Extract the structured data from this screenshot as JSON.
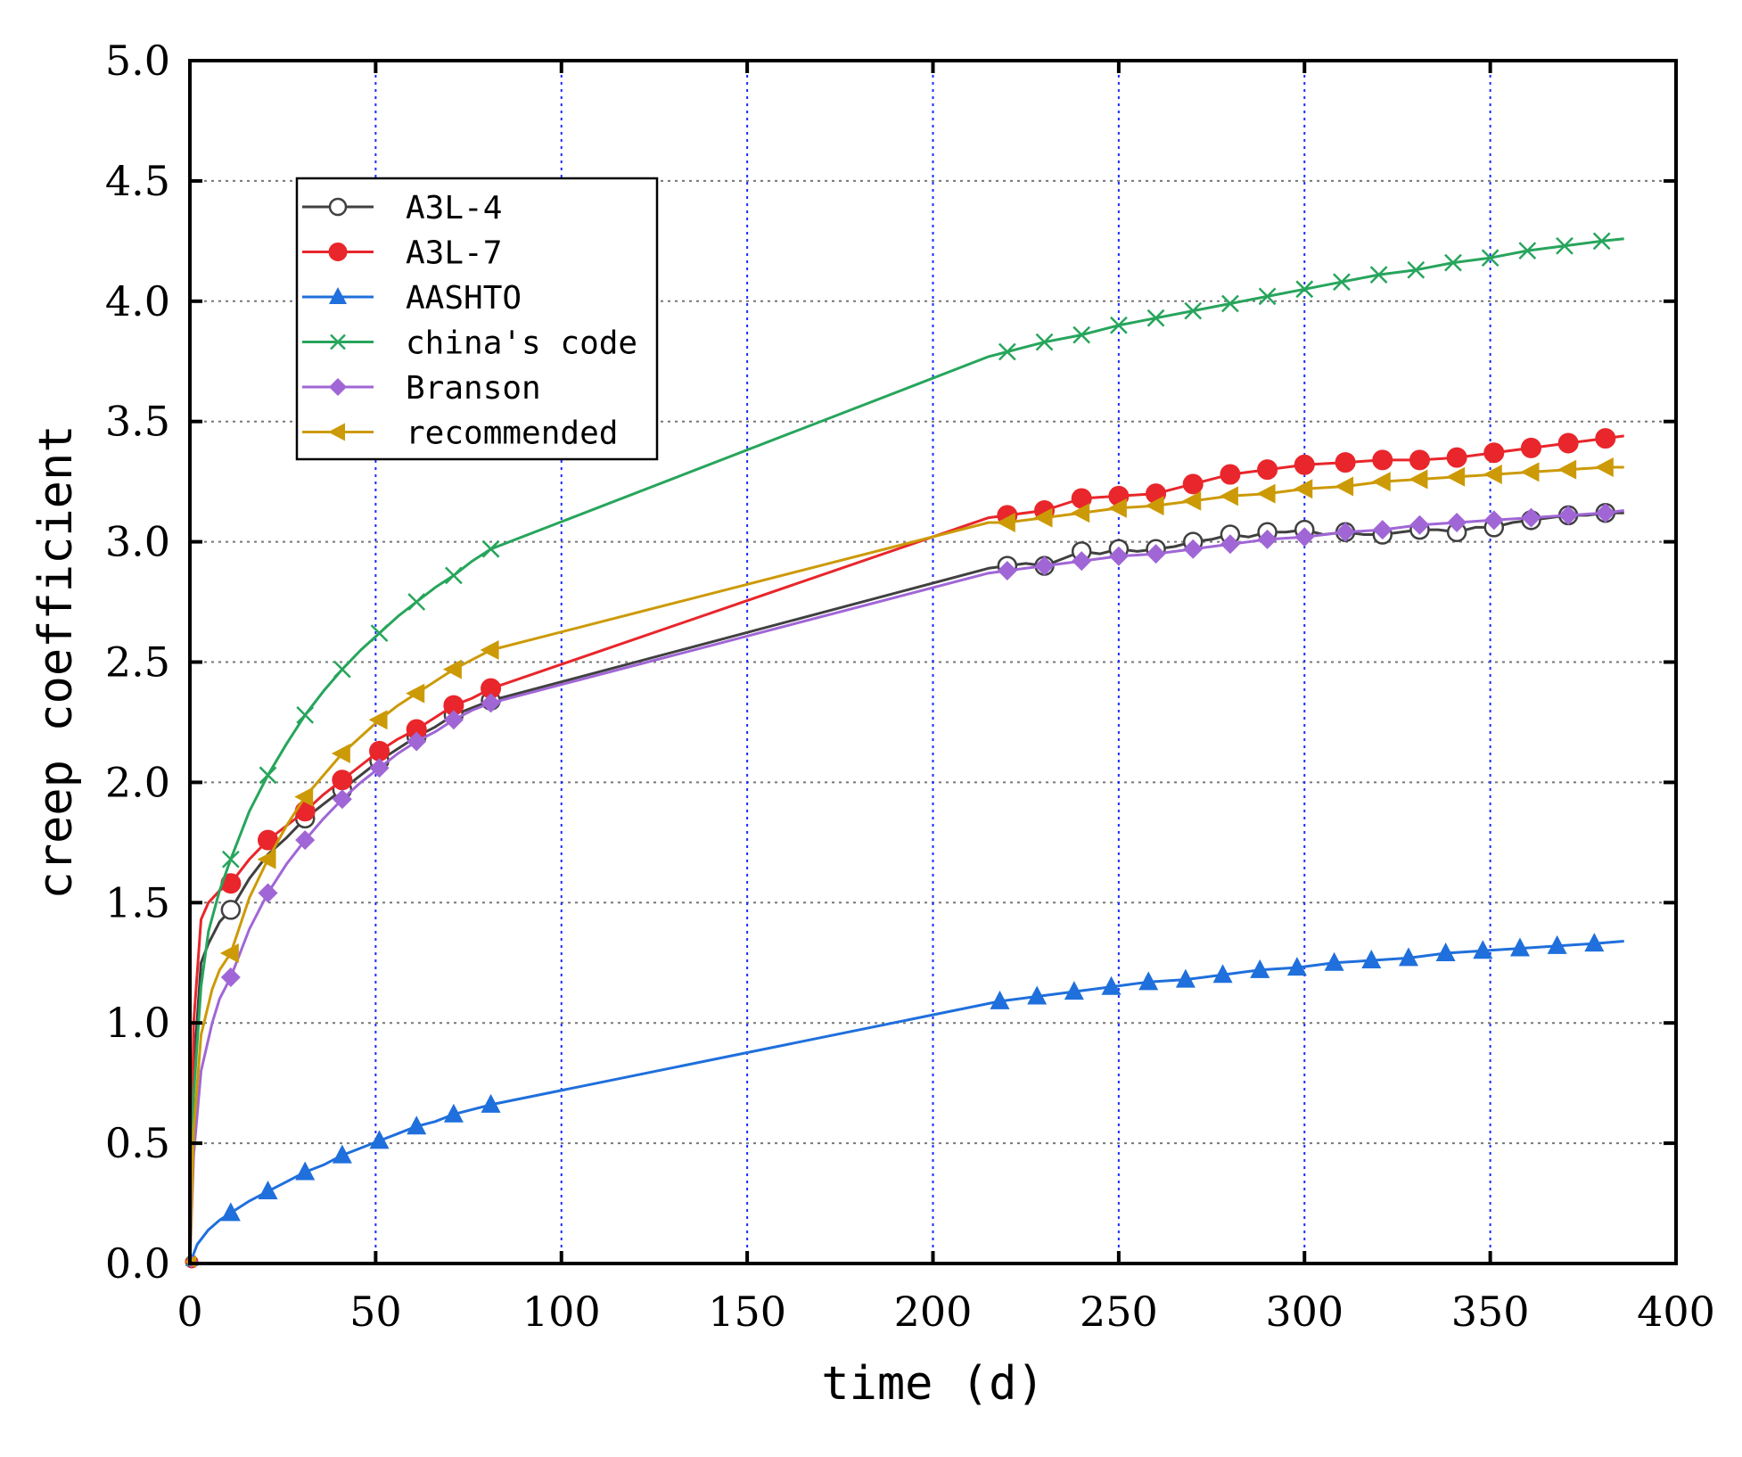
{
  "chart_data": {
    "type": "line",
    "title": "",
    "xlabel": "time (d)",
    "ylabel": "creep coefficient",
    "xlim": [
      0,
      400
    ],
    "ylim": [
      0,
      5
    ],
    "xticks": [
      0,
      50,
      100,
      150,
      200,
      250,
      300,
      350,
      400
    ],
    "yticks": [
      0.0,
      0.5,
      1.0,
      1.5,
      2.0,
      2.5,
      3.0,
      3.5,
      4.0,
      4.5,
      5.0
    ],
    "xtick_labels": [
      "0",
      "50",
      "100",
      "150",
      "200",
      "250",
      "300",
      "350",
      "400"
    ],
    "ytick_labels": [
      "0.0",
      "0.5",
      "1.0",
      "1.5",
      "2.0",
      "2.5",
      "3.0",
      "3.5",
      "4.0",
      "4.5",
      "5.0"
    ],
    "grid": {
      "x": "blue dotted",
      "y": "gray dotted"
    },
    "legend_position": "upper-left",
    "series": [
      {
        "name": "A3L-4",
        "color": "#404040",
        "marker": "circle-open",
        "points": [
          [
            0,
            0
          ],
          [
            1,
            0.8
          ],
          [
            3,
            1.25
          ],
          [
            5,
            1.33
          ],
          [
            8,
            1.42
          ],
          [
            11,
            1.47
          ],
          [
            16,
            1.6
          ],
          [
            21,
            1.7
          ],
          [
            26,
            1.77
          ],
          [
            31,
            1.85
          ],
          [
            36,
            1.91
          ],
          [
            41,
            1.97
          ],
          [
            46,
            2.03
          ],
          [
            51,
            2.09
          ],
          [
            56,
            2.14
          ],
          [
            61,
            2.19
          ],
          [
            66,
            2.23
          ],
          [
            71,
            2.28
          ],
          [
            76,
            2.31
          ],
          [
            81,
            2.34
          ],
          [
            215,
            2.89
          ],
          [
            220,
            2.9
          ],
          [
            225,
            2.91
          ],
          [
            230,
            2.9
          ],
          [
            235,
            2.93
          ],
          [
            240,
            2.96
          ],
          [
            245,
            2.95
          ],
          [
            250,
            2.97
          ],
          [
            255,
            2.96
          ],
          [
            260,
            2.97
          ],
          [
            265,
            2.98
          ],
          [
            270,
            3.0
          ],
          [
            275,
            3.01
          ],
          [
            280,
            3.03
          ],
          [
            285,
            3.02
          ],
          [
            290,
            3.04
          ],
          [
            295,
            3.04
          ],
          [
            300,
            3.05
          ],
          [
            305,
            3.03
          ],
          [
            311,
            3.04
          ],
          [
            316,
            3.03
          ],
          [
            321,
            3.03
          ],
          [
            326,
            3.04
          ],
          [
            331,
            3.05
          ],
          [
            336,
            3.05
          ],
          [
            341,
            3.04
          ],
          [
            346,
            3.06
          ],
          [
            351,
            3.06
          ],
          [
            356,
            3.08
          ],
          [
            361,
            3.09
          ],
          [
            366,
            3.1
          ],
          [
            371,
            3.11
          ],
          [
            376,
            3.11
          ],
          [
            381,
            3.12
          ],
          [
            386,
            3.12
          ]
        ],
        "markers_at": [
          11,
          31,
          41,
          51,
          61,
          71,
          81,
          220,
          230,
          240,
          250,
          260,
          270,
          280,
          290,
          300,
          311,
          321,
          331,
          341,
          351,
          361,
          371,
          381
        ]
      },
      {
        "name": "A3L-7",
        "color": "#e8262b",
        "marker": "circle-filled",
        "points": [
          [
            0,
            0
          ],
          [
            1,
            1.0
          ],
          [
            3,
            1.43
          ],
          [
            5,
            1.5
          ],
          [
            8,
            1.55
          ],
          [
            11,
            1.58
          ],
          [
            16,
            1.68
          ],
          [
            21,
            1.76
          ],
          [
            26,
            1.82
          ],
          [
            31,
            1.88
          ],
          [
            36,
            1.95
          ],
          [
            41,
            2.01
          ],
          [
            46,
            2.07
          ],
          [
            51,
            2.13
          ],
          [
            56,
            2.18
          ],
          [
            61,
            2.22
          ],
          [
            66,
            2.27
          ],
          [
            71,
            2.32
          ],
          [
            76,
            2.35
          ],
          [
            81,
            2.39
          ],
          [
            215,
            3.1
          ],
          [
            220,
            3.11
          ],
          [
            230,
            3.13
          ],
          [
            240,
            3.18
          ],
          [
            250,
            3.19
          ],
          [
            260,
            3.2
          ],
          [
            270,
            3.24
          ],
          [
            280,
            3.28
          ],
          [
            290,
            3.3
          ],
          [
            300,
            3.32
          ],
          [
            311,
            3.33
          ],
          [
            321,
            3.34
          ],
          [
            331,
            3.34
          ],
          [
            341,
            3.35
          ],
          [
            351,
            3.37
          ],
          [
            361,
            3.39
          ],
          [
            371,
            3.41
          ],
          [
            381,
            3.43
          ],
          [
            386,
            3.44
          ]
        ],
        "markers_at": [
          11,
          21,
          31,
          41,
          51,
          61,
          71,
          81,
          220,
          230,
          240,
          250,
          260,
          270,
          280,
          290,
          300,
          311,
          321,
          331,
          341,
          351,
          361,
          371,
          381
        ]
      },
      {
        "name": "AASHTO",
        "color": "#1f6fdc",
        "marker": "triangle-up",
        "points": [
          [
            0,
            0
          ],
          [
            2,
            0.08
          ],
          [
            5,
            0.14
          ],
          [
            8,
            0.18
          ],
          [
            11,
            0.21
          ],
          [
            16,
            0.26
          ],
          [
            21,
            0.3
          ],
          [
            26,
            0.34
          ],
          [
            31,
            0.38
          ],
          [
            36,
            0.41
          ],
          [
            41,
            0.45
          ],
          [
            46,
            0.48
          ],
          [
            51,
            0.51
          ],
          [
            56,
            0.54
          ],
          [
            61,
            0.57
          ],
          [
            66,
            0.59
          ],
          [
            71,
            0.62
          ],
          [
            76,
            0.64
          ],
          [
            81,
            0.66
          ],
          [
            218,
            1.09
          ],
          [
            228,
            1.11
          ],
          [
            238,
            1.13
          ],
          [
            248,
            1.15
          ],
          [
            258,
            1.17
          ],
          [
            268,
            1.18
          ],
          [
            278,
            1.2
          ],
          [
            288,
            1.22
          ],
          [
            298,
            1.23
          ],
          [
            308,
            1.25
          ],
          [
            318,
            1.26
          ],
          [
            328,
            1.27
          ],
          [
            338,
            1.29
          ],
          [
            348,
            1.3
          ],
          [
            358,
            1.31
          ],
          [
            368,
            1.32
          ],
          [
            378,
            1.33
          ],
          [
            386,
            1.34
          ]
        ],
        "markers_at": [
          11,
          21,
          31,
          41,
          51,
          61,
          71,
          81,
          218,
          228,
          238,
          248,
          258,
          268,
          278,
          288,
          298,
          308,
          318,
          328,
          338,
          348,
          358,
          368,
          378
        ]
      },
      {
        "name": "china's code",
        "color": "#27a55c",
        "marker": "x",
        "points": [
          [
            0,
            0
          ],
          [
            1,
            0.7
          ],
          [
            3,
            1.15
          ],
          [
            5,
            1.38
          ],
          [
            8,
            1.55
          ],
          [
            11,
            1.68
          ],
          [
            16,
            1.88
          ],
          [
            21,
            2.03
          ],
          [
            26,
            2.16
          ],
          [
            31,
            2.28
          ],
          [
            36,
            2.38
          ],
          [
            41,
            2.47
          ],
          [
            46,
            2.55
          ],
          [
            51,
            2.62
          ],
          [
            56,
            2.69
          ],
          [
            61,
            2.75
          ],
          [
            66,
            2.81
          ],
          [
            71,
            2.86
          ],
          [
            76,
            2.92
          ],
          [
            81,
            2.97
          ],
          [
            215,
            3.77
          ],
          [
            220,
            3.79
          ],
          [
            230,
            3.83
          ],
          [
            240,
            3.86
          ],
          [
            250,
            3.9
          ],
          [
            260,
            3.93
          ],
          [
            270,
            3.96
          ],
          [
            280,
            3.99
          ],
          [
            290,
            4.02
          ],
          [
            300,
            4.05
          ],
          [
            310,
            4.08
          ],
          [
            320,
            4.11
          ],
          [
            330,
            4.13
          ],
          [
            340,
            4.16
          ],
          [
            350,
            4.18
          ],
          [
            360,
            4.21
          ],
          [
            370,
            4.23
          ],
          [
            380,
            4.25
          ],
          [
            386,
            4.26
          ]
        ],
        "markers_at": [
          11,
          21,
          31,
          41,
          51,
          61,
          71,
          81,
          220,
          230,
          240,
          250,
          260,
          270,
          280,
          290,
          300,
          310,
          320,
          330,
          340,
          350,
          360,
          370,
          380
        ]
      },
      {
        "name": "Branson",
        "color": "#a066d6",
        "marker": "diamond",
        "points": [
          [
            0,
            0
          ],
          [
            1,
            0.45
          ],
          [
            3,
            0.8
          ],
          [
            6,
            1.0
          ],
          [
            8,
            1.1
          ],
          [
            11,
            1.19
          ],
          [
            16,
            1.39
          ],
          [
            21,
            1.54
          ],
          [
            26,
            1.66
          ],
          [
            31,
            1.76
          ],
          [
            36,
            1.85
          ],
          [
            41,
            1.93
          ],
          [
            46,
            2.0
          ],
          [
            51,
            2.06
          ],
          [
            56,
            2.12
          ],
          [
            61,
            2.17
          ],
          [
            66,
            2.21
          ],
          [
            71,
            2.26
          ],
          [
            76,
            2.3
          ],
          [
            81,
            2.33
          ],
          [
            215,
            2.87
          ],
          [
            220,
            2.88
          ],
          [
            230,
            2.9
          ],
          [
            240,
            2.92
          ],
          [
            250,
            2.94
          ],
          [
            260,
            2.95
          ],
          [
            270,
            2.97
          ],
          [
            280,
            2.99
          ],
          [
            290,
            3.01
          ],
          [
            300,
            3.02
          ],
          [
            311,
            3.04
          ],
          [
            321,
            3.05
          ],
          [
            331,
            3.07
          ],
          [
            341,
            3.08
          ],
          [
            351,
            3.09
          ],
          [
            361,
            3.1
          ],
          [
            371,
            3.11
          ],
          [
            381,
            3.12
          ],
          [
            386,
            3.13
          ]
        ],
        "markers_at": [
          11,
          21,
          31,
          41,
          51,
          61,
          71,
          81,
          220,
          230,
          240,
          250,
          260,
          270,
          280,
          290,
          300,
          311,
          321,
          331,
          341,
          351,
          361,
          371,
          381
        ]
      },
      {
        "name": "recommended",
        "color": "#cc9a06",
        "marker": "triangle-left",
        "points": [
          [
            0,
            0
          ],
          [
            1,
            0.55
          ],
          [
            3,
            0.95
          ],
          [
            6,
            1.14
          ],
          [
            8,
            1.22
          ],
          [
            11,
            1.29
          ],
          [
            16,
            1.52
          ],
          [
            21,
            1.68
          ],
          [
            26,
            1.82
          ],
          [
            31,
            1.94
          ],
          [
            36,
            2.03
          ],
          [
            41,
            2.12
          ],
          [
            46,
            2.19
          ],
          [
            51,
            2.26
          ],
          [
            56,
            2.32
          ],
          [
            61,
            2.37
          ],
          [
            66,
            2.42
          ],
          [
            71,
            2.47
          ],
          [
            76,
            2.51
          ],
          [
            81,
            2.55
          ],
          [
            215,
            3.08
          ],
          [
            220,
            3.08
          ],
          [
            230,
            3.1
          ],
          [
            240,
            3.12
          ],
          [
            250,
            3.14
          ],
          [
            260,
            3.15
          ],
          [
            270,
            3.17
          ],
          [
            280,
            3.19
          ],
          [
            290,
            3.2
          ],
          [
            300,
            3.22
          ],
          [
            311,
            3.23
          ],
          [
            321,
            3.25
          ],
          [
            331,
            3.26
          ],
          [
            341,
            3.27
          ],
          [
            351,
            3.28
          ],
          [
            361,
            3.29
          ],
          [
            371,
            3.3
          ],
          [
            381,
            3.31
          ],
          [
            386,
            3.31
          ]
        ],
        "markers_at": [
          11,
          21,
          31,
          41,
          51,
          61,
          71,
          81,
          220,
          230,
          240,
          250,
          260,
          270,
          280,
          290,
          300,
          311,
          321,
          331,
          341,
          351,
          361,
          371,
          381
        ]
      }
    ]
  }
}
